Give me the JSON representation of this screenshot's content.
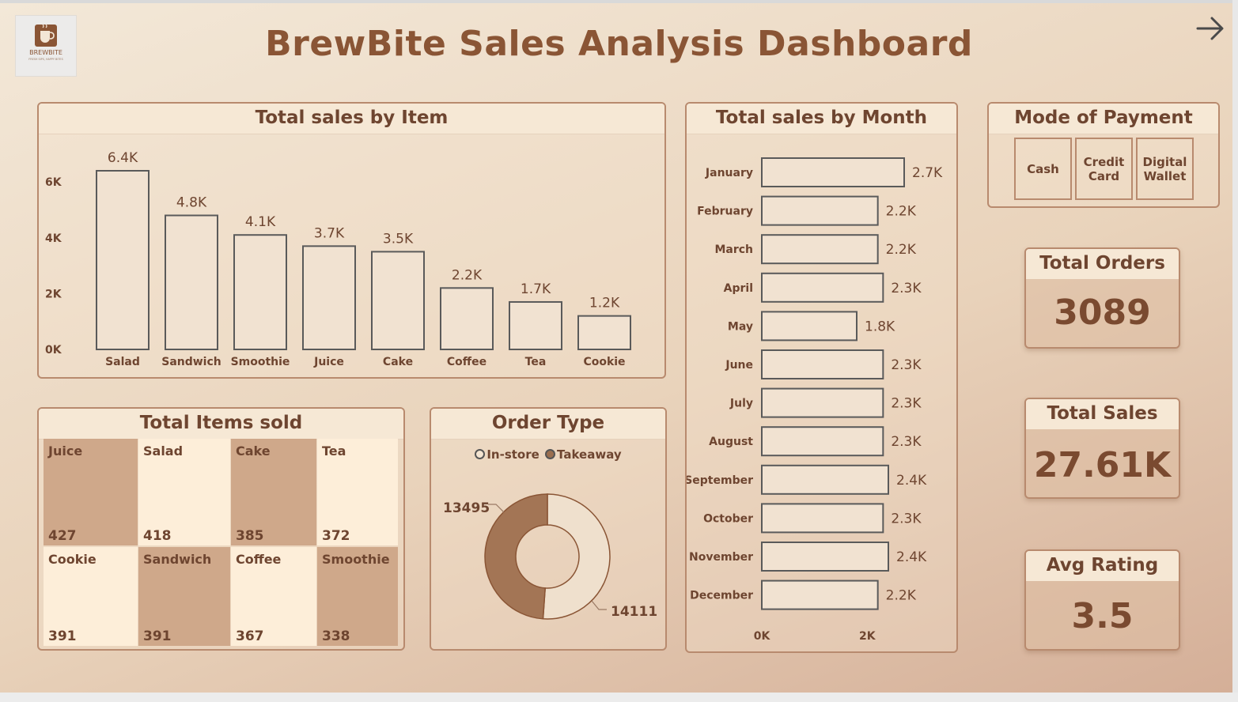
{
  "header": {
    "title": "BrewBite Sales Analysis Dashboard",
    "logo_text": "BREWBITE",
    "logo_tagline": "FRESH SIPS, HAPPY BITES"
  },
  "colors": {
    "accent": "#8a5535",
    "panel_border": "#b88a6e",
    "bar_fill": "#f1e2d1",
    "bar_stroke": "#5a5a5a",
    "tile_dark": "#cfa88a",
    "tile_light": "#fdeed9",
    "donut_instore": "#a37555",
    "donut_takeaway": "#efe0cd"
  },
  "icons": {
    "next": "arrow-right-icon",
    "logo": "coffee-cup-icon"
  },
  "chart_data": [
    {
      "id": "items",
      "type": "bar",
      "title": "Total sales by Item",
      "categories": [
        "Salad",
        "Sandwich",
        "Smoothie",
        "Juice",
        "Cake",
        "Coffee",
        "Tea",
        "Cookie"
      ],
      "values": [
        6400,
        4800,
        4100,
        3700,
        3500,
        2200,
        1700,
        1200
      ],
      "data_labels": [
        "6.4K",
        "4.8K",
        "4.1K",
        "3.7K",
        "3.5K",
        "2.2K",
        "1.7K",
        "1.2K"
      ],
      "y_ticks": [
        0,
        2000,
        4000,
        6000
      ],
      "y_tick_labels": [
        "0K",
        "2K",
        "4K",
        "6K"
      ],
      "ylim": [
        0,
        6400
      ],
      "grid": false
    },
    {
      "id": "months",
      "type": "bar",
      "orientation": "horizontal",
      "title": "Total sales by Month",
      "categories": [
        "January",
        "February",
        "March",
        "April",
        "May",
        "June",
        "July",
        "August",
        "September",
        "October",
        "November",
        "December"
      ],
      "values": [
        2700,
        2200,
        2200,
        2300,
        1800,
        2300,
        2300,
        2300,
        2400,
        2300,
        2400,
        2200
      ],
      "data_labels": [
        "2.7K",
        "2.2K",
        "2.2K",
        "2.3K",
        "1.8K",
        "2.3K",
        "2.3K",
        "2.3K",
        "2.4K",
        "2.3K",
        "2.4K",
        "2.2K"
      ],
      "x_ticks": [
        0,
        2000
      ],
      "x_tick_labels": [
        "0K",
        "2K"
      ],
      "xlim": [
        0,
        2700
      ],
      "grid": false
    },
    {
      "id": "items_sold",
      "type": "treemap",
      "title": "Total Items sold",
      "tiles": [
        {
          "name": "Juice",
          "value": 427,
          "shade": "dark"
        },
        {
          "name": "Salad",
          "value": 418,
          "shade": "light"
        },
        {
          "name": "Cake",
          "value": 385,
          "shade": "dark"
        },
        {
          "name": "Tea",
          "value": 372,
          "shade": "light"
        },
        {
          "name": "Cookie",
          "value": 391,
          "shade": "light"
        },
        {
          "name": "Sandwich",
          "value": 391,
          "shade": "dark"
        },
        {
          "name": "Coffee",
          "value": 367,
          "shade": "light"
        },
        {
          "name": "Smoothie",
          "value": 338,
          "shade": "dark"
        }
      ]
    },
    {
      "id": "order_type",
      "type": "pie",
      "donut": true,
      "title": "Order Type",
      "legend": [
        "In-store",
        "Takeaway"
      ],
      "legend_position": "top",
      "slices": [
        {
          "name": "In-store",
          "value": 13495
        },
        {
          "name": "Takeaway",
          "value": 14111
        }
      ],
      "slice_labels": [
        "13495",
        "14111"
      ]
    }
  ],
  "payment": {
    "title": "Mode of Payment",
    "options": [
      "Cash",
      "Credit Card",
      "Digital Wallet"
    ]
  },
  "kpis": [
    {
      "label": "Total Orders",
      "value": "3089"
    },
    {
      "label": "Total Sales",
      "value": "27.61K"
    },
    {
      "label": "Avg Rating",
      "value": "3.5"
    }
  ]
}
